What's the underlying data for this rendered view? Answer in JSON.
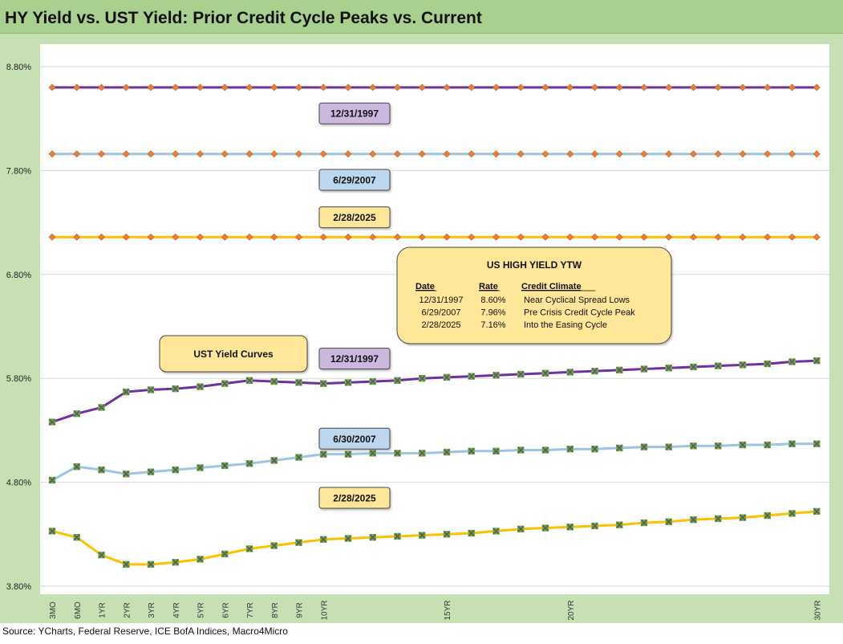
{
  "title": "HY Yield vs. UST Yield: Prior Credit Cycle Peaks vs. Current",
  "source": "Source: YCharts, Federal Reserve, ICE BofA Indices, Macro4Micro",
  "colors": {
    "purple": "#7030a0",
    "blue": "#9dc3e6",
    "gold": "#ffc000",
    "hy_marker": "#ed7d31",
    "ust_marker_fill": "#70ad47",
    "ust_marker_x": "#595959",
    "label_purple": "#ccb8df",
    "label_blue": "#bdd7ee",
    "label_gold": "#ffe699"
  },
  "chart_data": {
    "type": "line",
    "title": "HY Yield vs. UST Yield: Prior Credit Cycle Peaks vs. Current",
    "ylim": [
      3.8,
      8.8
    ],
    "yticks": [
      "3.80%",
      "4.80%",
      "5.80%",
      "6.80%",
      "7.80%",
      "8.80%"
    ],
    "ytick_values": [
      3.8,
      4.8,
      5.8,
      6.8,
      7.8,
      8.8
    ],
    "x_count": 33,
    "xtick_labels": [
      {
        "index": 0,
        "label": "3MO"
      },
      {
        "index": 1,
        "label": "6MO"
      },
      {
        "index": 2,
        "label": "1YR"
      },
      {
        "index": 3,
        "label": "2YR"
      },
      {
        "index": 4,
        "label": "3YR"
      },
      {
        "index": 5,
        "label": "4YR"
      },
      {
        "index": 6,
        "label": "5YR"
      },
      {
        "index": 7,
        "label": "6YR"
      },
      {
        "index": 8,
        "label": "7YR"
      },
      {
        "index": 9,
        "label": "8YR"
      },
      {
        "index": 10,
        "label": "9YR"
      },
      {
        "index": 11,
        "label": "10YR"
      },
      {
        "index": 16,
        "label": "15YR"
      },
      {
        "index": 21,
        "label": "20YR"
      },
      {
        "index": 31,
        "label": "30YR"
      }
    ],
    "series": [
      {
        "name": "HY YTW 12/31/1997",
        "kind": "hy",
        "color": "purple",
        "constant": 8.6,
        "label": "12/31/1997",
        "label_value": 8.35
      },
      {
        "name": "HY YTW 6/29/2007",
        "kind": "hy",
        "color": "blue",
        "constant": 7.96,
        "label": "6/29/2007",
        "label_value": 7.71
      },
      {
        "name": "HY YTW 2/28/2025",
        "kind": "hy",
        "color": "gold",
        "constant": 7.16,
        "label": "2/28/2025",
        "label_value": 7.35
      },
      {
        "name": "UST 12/31/1997",
        "kind": "ust",
        "color": "purple",
        "label": "12/31/1997",
        "label_value": 5.99,
        "values": [
          5.38,
          5.46,
          5.52,
          5.67,
          5.69,
          5.7,
          5.72,
          5.75,
          5.78,
          5.77,
          5.76,
          5.75,
          5.76,
          5.77,
          5.78,
          5.8,
          5.81,
          5.82,
          5.83,
          5.84,
          5.85,
          5.86,
          5.87,
          5.88,
          5.89,
          5.9,
          5.91,
          5.92,
          5.93,
          5.94,
          5.96,
          5.97
        ]
      },
      {
        "name": "UST 6/30/2007",
        "kind": "ust",
        "color": "blue",
        "label": "6/30/2007",
        "label_value": 5.22,
        "values": [
          4.82,
          4.95,
          4.92,
          4.88,
          4.9,
          4.92,
          4.94,
          4.96,
          4.98,
          5.01,
          5.04,
          5.07,
          5.07,
          5.08,
          5.08,
          5.08,
          5.09,
          5.1,
          5.1,
          5.11,
          5.11,
          5.12,
          5.12,
          5.13,
          5.14,
          5.14,
          5.15,
          5.15,
          5.16,
          5.16,
          5.17,
          5.17
        ]
      },
      {
        "name": "UST 2/28/2025",
        "kind": "ust",
        "color": "gold",
        "label": "2/28/2025",
        "label_value": 4.65,
        "values": [
          4.33,
          4.27,
          4.1,
          4.01,
          4.01,
          4.03,
          4.06,
          4.11,
          4.16,
          4.19,
          4.22,
          4.25,
          4.26,
          4.27,
          4.28,
          4.29,
          4.3,
          4.31,
          4.33,
          4.35,
          4.36,
          4.37,
          4.38,
          4.39,
          4.41,
          4.42,
          4.44,
          4.45,
          4.46,
          4.48,
          4.5,
          4.52
        ]
      }
    ],
    "ytw_table": {
      "title": "US HIGH YIELD YTW",
      "headers": [
        "Date",
        "Rate",
        "Credit Climate"
      ],
      "rows": [
        [
          "12/31/1997",
          "8.60%",
          "Near Cyclical Spread Lows"
        ],
        [
          "6/29/2007",
          "7.96%",
          "Pre Crisis Credit Cycle Peak"
        ],
        [
          "2/28/2025",
          "7.16%",
          "Into the Easing Cycle"
        ]
      ]
    },
    "ust_box_label": "UST  Yield Curves"
  }
}
